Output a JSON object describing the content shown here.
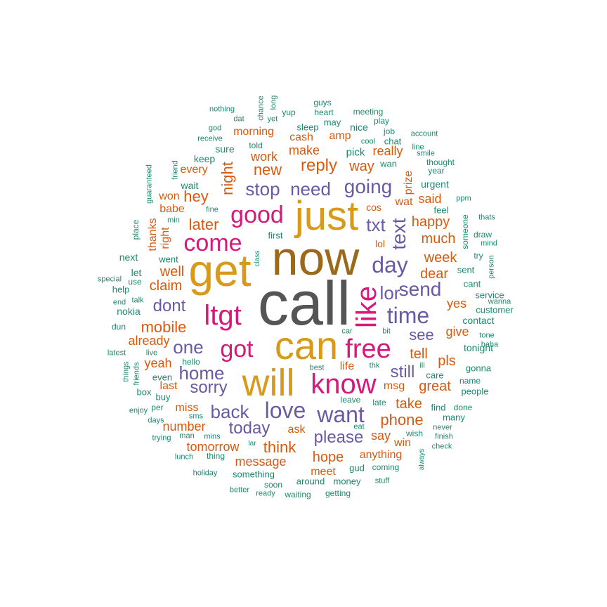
{
  "colors": {
    "c1": "#555555",
    "c2": "#9a6a1a",
    "c3": "#d99a1a",
    "c4": "#d6197a",
    "c5": "#6a5aa3",
    "c6": "#d75a0f",
    "c7": "#1b8a6e"
  },
  "words": [
    {
      "text": "call",
      "color": "c1"
    },
    {
      "text": "now",
      "color": "c2"
    },
    {
      "text": "can",
      "color": "c3"
    },
    {
      "text": "get",
      "color": "c3"
    },
    {
      "text": "just",
      "color": "c3"
    },
    {
      "text": "will",
      "color": "c3"
    },
    {
      "text": "free",
      "color": "c4"
    },
    {
      "text": "know",
      "color": "c4"
    },
    {
      "text": "like",
      "color": "c4"
    },
    {
      "text": "ltgt",
      "color": "c4"
    },
    {
      "text": "good",
      "color": "c4"
    },
    {
      "text": "come",
      "color": "c4"
    },
    {
      "text": "got",
      "color": "c4"
    },
    {
      "text": "time",
      "color": "c5"
    },
    {
      "text": "day",
      "color": "c5"
    },
    {
      "text": "love",
      "color": "c5"
    },
    {
      "text": "want",
      "color": "c5"
    },
    {
      "text": "send",
      "color": "c5"
    },
    {
      "text": "going",
      "color": "c5"
    },
    {
      "text": "stop",
      "color": "c5"
    },
    {
      "text": "need",
      "color": "c5"
    },
    {
      "text": "text",
      "color": "c5"
    },
    {
      "text": "txt",
      "color": "c5"
    },
    {
      "text": "one",
      "color": "c5"
    },
    {
      "text": "home",
      "color": "c5"
    },
    {
      "text": "back",
      "color": "c5"
    },
    {
      "text": "sorry",
      "color": "c5"
    },
    {
      "text": "dont",
      "color": "c5"
    },
    {
      "text": "today",
      "color": "c5"
    },
    {
      "text": "lor",
      "color": "c5"
    },
    {
      "text": "see",
      "color": "c5"
    },
    {
      "text": "still",
      "color": "c5"
    },
    {
      "text": "please",
      "color": "c5"
    },
    {
      "text": "reply",
      "color": "c6"
    },
    {
      "text": "new",
      "color": "c6"
    },
    {
      "text": "later",
      "color": "c6"
    },
    {
      "text": "mobile",
      "color": "c6"
    },
    {
      "text": "night",
      "color": "c6"
    },
    {
      "text": "hey",
      "color": "c6"
    },
    {
      "text": "well",
      "color": "c6"
    },
    {
      "text": "claim",
      "color": "c6"
    },
    {
      "text": "week",
      "color": "c6"
    },
    {
      "text": "much",
      "color": "c6"
    },
    {
      "text": "happy",
      "color": "c6"
    },
    {
      "text": "dear",
      "color": "c6"
    },
    {
      "text": "tell",
      "color": "c6"
    },
    {
      "text": "phone",
      "color": "c6"
    },
    {
      "text": "take",
      "color": "c6"
    },
    {
      "text": "great",
      "color": "c6"
    },
    {
      "text": "think",
      "color": "c6"
    },
    {
      "text": "message",
      "color": "c6"
    },
    {
      "text": "tomorrow",
      "color": "c6"
    },
    {
      "text": "number",
      "color": "c6"
    },
    {
      "text": "hope",
      "color": "c6"
    },
    {
      "text": "say",
      "color": "c6"
    },
    {
      "text": "make",
      "color": "c6"
    },
    {
      "text": "work",
      "color": "c6"
    },
    {
      "text": "way",
      "color": "c6"
    },
    {
      "text": "yeah",
      "color": "c6"
    },
    {
      "text": "pls",
      "color": "c6"
    },
    {
      "text": "give",
      "color": "c6"
    },
    {
      "text": "yes",
      "color": "c6"
    },
    {
      "text": "said",
      "color": "c6"
    },
    {
      "text": "already",
      "color": "c6"
    },
    {
      "text": "cash",
      "color": "c6"
    },
    {
      "text": "morning",
      "color": "c6"
    },
    {
      "text": "really",
      "color": "c6"
    },
    {
      "text": "amp",
      "color": "c6"
    },
    {
      "text": "prize",
      "color": "c6"
    },
    {
      "text": "wat",
      "color": "c6"
    },
    {
      "text": "cos",
      "color": "c6"
    },
    {
      "text": "lol",
      "color": "c6"
    },
    {
      "text": "anything",
      "color": "c6"
    },
    {
      "text": "win",
      "color": "c6"
    },
    {
      "text": "meet",
      "color": "c6"
    },
    {
      "text": "ask",
      "color": "c6"
    },
    {
      "text": "miss",
      "color": "c6"
    },
    {
      "text": "msg",
      "color": "c6"
    },
    {
      "text": "last",
      "color": "c6"
    },
    {
      "text": "every",
      "color": "c6"
    },
    {
      "text": "won",
      "color": "c6"
    },
    {
      "text": "babe",
      "color": "c6"
    },
    {
      "text": "right",
      "color": "c6"
    },
    {
      "text": "thanks",
      "color": "c6"
    },
    {
      "text": "life",
      "color": "c6"
    },
    {
      "text": "nothing",
      "color": "c7"
    },
    {
      "text": "dat",
      "color": "c7"
    },
    {
      "text": "chance",
      "color": "c7"
    },
    {
      "text": "yet",
      "color": "c7"
    },
    {
      "text": "long",
      "color": "c7"
    },
    {
      "text": "yup",
      "color": "c7"
    },
    {
      "text": "guys",
      "color": "c7"
    },
    {
      "text": "heart",
      "color": "c7"
    },
    {
      "text": "may",
      "color": "c7"
    },
    {
      "text": "meeting",
      "color": "c7"
    },
    {
      "text": "play",
      "color": "c7"
    },
    {
      "text": "god",
      "color": "c7"
    },
    {
      "text": "receive",
      "color": "c7"
    },
    {
      "text": "told",
      "color": "c7"
    },
    {
      "text": "sleep",
      "color": "c7"
    },
    {
      "text": "nice",
      "color": "c7"
    },
    {
      "text": "job",
      "color": "c7"
    },
    {
      "text": "account",
      "color": "c7"
    },
    {
      "text": "cool",
      "color": "c7"
    },
    {
      "text": "chat",
      "color": "c7"
    },
    {
      "text": "line",
      "color": "c7"
    },
    {
      "text": "smile",
      "color": "c7"
    },
    {
      "text": "sure",
      "color": "c7"
    },
    {
      "text": "keep",
      "color": "c7"
    },
    {
      "text": "pick",
      "color": "c7"
    },
    {
      "text": "wan",
      "color": "c7"
    },
    {
      "text": "thought",
      "color": "c7"
    },
    {
      "text": "year",
      "color": "c7"
    },
    {
      "text": "guaranteed",
      "color": "c7"
    },
    {
      "text": "friend",
      "color": "c7"
    },
    {
      "text": "wait",
      "color": "c7"
    },
    {
      "text": "urgent",
      "color": "c7"
    },
    {
      "text": "ppm",
      "color": "c7"
    },
    {
      "text": "fine",
      "color": "c7"
    },
    {
      "text": "feel",
      "color": "c7"
    },
    {
      "text": "thats",
      "color": "c7"
    },
    {
      "text": "place",
      "color": "c7"
    },
    {
      "text": "min",
      "color": "c7"
    },
    {
      "text": "first",
      "color": "c7"
    },
    {
      "text": "someone",
      "color": "c7"
    },
    {
      "text": "draw",
      "color": "c7"
    },
    {
      "text": "mind",
      "color": "c7"
    },
    {
      "text": "next",
      "color": "c7"
    },
    {
      "text": "went",
      "color": "c7"
    },
    {
      "text": "class",
      "color": "c7"
    },
    {
      "text": "try",
      "color": "c7"
    },
    {
      "text": "person",
      "color": "c7"
    },
    {
      "text": "let",
      "color": "c7"
    },
    {
      "text": "sent",
      "color": "c7"
    },
    {
      "text": "special",
      "color": "c7"
    },
    {
      "text": "use",
      "color": "c7"
    },
    {
      "text": "help",
      "color": "c7"
    },
    {
      "text": "cant",
      "color": "c7"
    },
    {
      "text": "service",
      "color": "c7"
    },
    {
      "text": "wanna",
      "color": "c7"
    },
    {
      "text": "end",
      "color": "c7"
    },
    {
      "text": "talk",
      "color": "c7"
    },
    {
      "text": "nokia",
      "color": "c7"
    },
    {
      "text": "customer",
      "color": "c7"
    },
    {
      "text": "contact",
      "color": "c7"
    },
    {
      "text": "dun",
      "color": "c7"
    },
    {
      "text": "car",
      "color": "c7"
    },
    {
      "text": "bit",
      "color": "c7"
    },
    {
      "text": "tone",
      "color": "c7"
    },
    {
      "text": "tonight",
      "color": "c7"
    },
    {
      "text": "haha",
      "color": "c7"
    },
    {
      "text": "latest",
      "color": "c7"
    },
    {
      "text": "live",
      "color": "c7"
    },
    {
      "text": "hello",
      "color": "c7"
    },
    {
      "text": "things",
      "color": "c7"
    },
    {
      "text": "friends",
      "color": "c7"
    },
    {
      "text": "best",
      "color": "c7"
    },
    {
      "text": "thk",
      "color": "c7"
    },
    {
      "text": "ill",
      "color": "c7"
    },
    {
      "text": "care",
      "color": "c7"
    },
    {
      "text": "gonna",
      "color": "c7"
    },
    {
      "text": "even",
      "color": "c7"
    },
    {
      "text": "name",
      "color": "c7"
    },
    {
      "text": "people",
      "color": "c7"
    },
    {
      "text": "box",
      "color": "c7"
    },
    {
      "text": "buy",
      "color": "c7"
    },
    {
      "text": "leave",
      "color": "c7"
    },
    {
      "text": "late",
      "color": "c7"
    },
    {
      "text": "find",
      "color": "c7"
    },
    {
      "text": "done",
      "color": "c7"
    },
    {
      "text": "enjoy",
      "color": "c7"
    },
    {
      "text": "per",
      "color": "c7"
    },
    {
      "text": "sms",
      "color": "c7"
    },
    {
      "text": "many",
      "color": "c7"
    },
    {
      "text": "days",
      "color": "c7"
    },
    {
      "text": "eat",
      "color": "c7"
    },
    {
      "text": "wish",
      "color": "c7"
    },
    {
      "text": "never",
      "color": "c7"
    },
    {
      "text": "trying",
      "color": "c7"
    },
    {
      "text": "man",
      "color": "c7"
    },
    {
      "text": "mins",
      "color": "c7"
    },
    {
      "text": "lar",
      "color": "c7"
    },
    {
      "text": "finish",
      "color": "c7"
    },
    {
      "text": "always",
      "color": "c7"
    },
    {
      "text": "check",
      "color": "c7"
    },
    {
      "text": "lunch",
      "color": "c7"
    },
    {
      "text": "thing",
      "color": "c7"
    },
    {
      "text": "gud",
      "color": "c7"
    },
    {
      "text": "coming",
      "color": "c7"
    },
    {
      "text": "holiday",
      "color": "c7"
    },
    {
      "text": "something",
      "color": "c7"
    },
    {
      "text": "around",
      "color": "c7"
    },
    {
      "text": "money",
      "color": "c7"
    },
    {
      "text": "stuff",
      "color": "c7"
    },
    {
      "text": "soon",
      "color": "c7"
    },
    {
      "text": "better",
      "color": "c7"
    },
    {
      "text": "ready",
      "color": "c7"
    },
    {
      "text": "waiting",
      "color": "c7"
    },
    {
      "text": "getting",
      "color": "c7"
    }
  ]
}
